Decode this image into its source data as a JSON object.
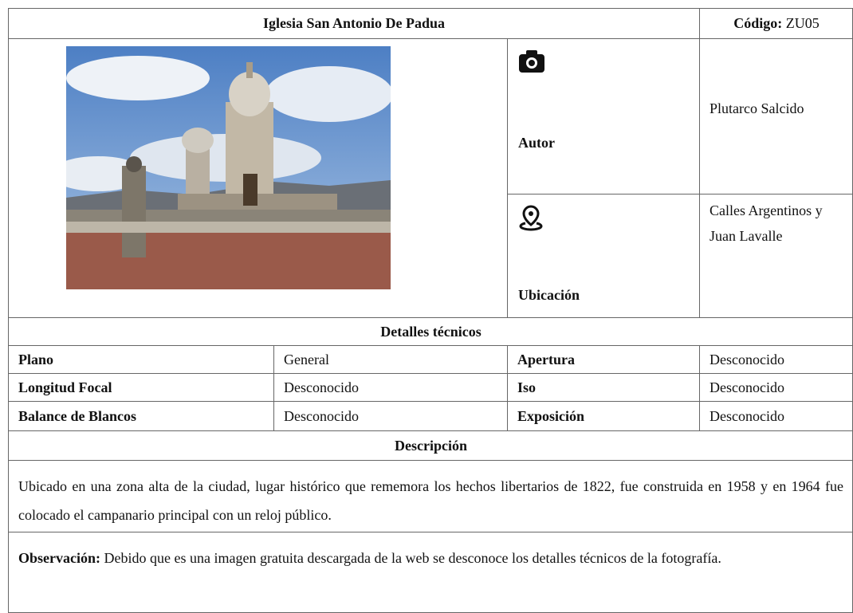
{
  "header": {
    "title": "Iglesia San Antonio De Padua",
    "code_label": "Código:",
    "code": "ZU05"
  },
  "author": {
    "label": "Autor",
    "value": "Plutarco Salcido"
  },
  "location": {
    "label": "Ubicación",
    "value": "Calles Argentinos y Juan Lavalle"
  },
  "technical": {
    "title": "Detalles técnicos",
    "rows": [
      [
        "Plano",
        "General",
        "Apertura",
        "Desconocido"
      ],
      [
        "Longitud Focal",
        "Desconocido",
        "Iso",
        "Desconocido"
      ],
      [
        "Balance de Blancos",
        "Desconocido",
        "Exposición",
        "Desconocido"
      ]
    ]
  },
  "description": {
    "title": "Descripción",
    "text": "Ubicado en una zona alta de la ciudad, lugar histórico que rememora los hechos libertarios de 1822, fue construida en 1958 y en 1964 fue colocado el campanario principal con un reloj público."
  },
  "observation": {
    "label": "Observación:",
    "text": "Debido que es una imagen gratuita descargada de la web se desconoce los detalles técnicos de la fotografía."
  }
}
